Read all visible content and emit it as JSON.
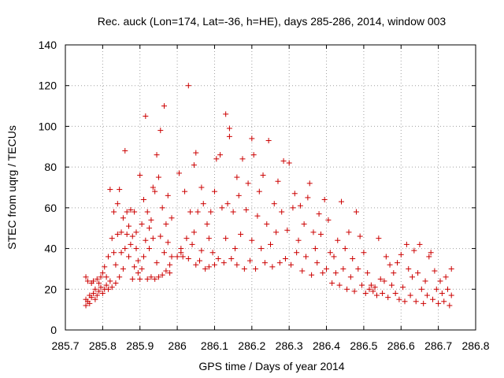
{
  "chart_data": {
    "type": "scatter",
    "title": "Rec. auck (Lon=174, Lat=-36, h=HE), days 285-286, 2014, window 003",
    "xlabel": "GPS time / Days of year 2014",
    "ylabel": "STEC from uqrg / TECUs",
    "xlim": [
      285.7,
      286.8
    ],
    "ylim": [
      0,
      140
    ],
    "xticks": [
      "285.7",
      "285.8",
      "285.9",
      "286",
      "286.1",
      "286.2",
      "286.3",
      "286.4",
      "286.5",
      "286.6",
      "286.7",
      "286.8"
    ],
    "yticks": [
      "0",
      "20",
      "40",
      "60",
      "80",
      "100",
      "120",
      "140"
    ],
    "grid": true,
    "legend": "none",
    "marker": "plus",
    "color": "#cc0000",
    "series": [
      {
        "points": [
          [
            285.755,
            12
          ],
          [
            285.755,
            15
          ],
          [
            285.755,
            26
          ],
          [
            285.76,
            14
          ],
          [
            285.76,
            24
          ],
          [
            285.765,
            13
          ],
          [
            285.765,
            17
          ],
          [
            285.77,
            16
          ],
          [
            285.77,
            23
          ],
          [
            285.775,
            18
          ],
          [
            285.775,
            24
          ],
          [
            285.78,
            15
          ],
          [
            285.78,
            20
          ],
          [
            285.785,
            17
          ],
          [
            285.785,
            25
          ],
          [
            285.79,
            19
          ],
          [
            285.79,
            23
          ],
          [
            285.795,
            21
          ],
          [
            285.795,
            26
          ],
          [
            285.8,
            18
          ],
          [
            285.8,
            28
          ],
          [
            285.805,
            20
          ],
          [
            285.805,
            31
          ],
          [
            285.81,
            22
          ],
          [
            285.81,
            26
          ],
          [
            285.815,
            20
          ],
          [
            285.815,
            36
          ],
          [
            285.82,
            24
          ],
          [
            285.82,
            69
          ],
          [
            285.825,
            21
          ],
          [
            285.825,
            45
          ],
          [
            285.83,
            38
          ],
          [
            285.83,
            58
          ],
          [
            285.835,
            23
          ],
          [
            285.835,
            32
          ],
          [
            285.84,
            47
          ],
          [
            285.84,
            62
          ],
          [
            285.845,
            26
          ],
          [
            285.845,
            69
          ],
          [
            285.85,
            38
          ],
          [
            285.85,
            48
          ],
          [
            285.855,
            30
          ],
          [
            285.855,
            55
          ],
          [
            285.86,
            40
          ],
          [
            285.86,
            88
          ],
          [
            285.865,
            47
          ],
          [
            285.865,
            58
          ],
          [
            285.87,
            36
          ],
          [
            285.87,
            51
          ],
          [
            285.875,
            42
          ],
          [
            285.875,
            59
          ],
          [
            285.88,
            25
          ],
          [
            285.88,
            46
          ],
          [
            285.885,
            31
          ],
          [
            285.885,
            58
          ],
          [
            285.89,
            40
          ],
          [
            285.89,
            48
          ],
          [
            285.895,
            28
          ],
          [
            285.895,
            34
          ],
          [
            285.9,
            25
          ],
          [
            285.9,
            76
          ],
          [
            285.905,
            30
          ],
          [
            285.905,
            52
          ],
          [
            285.91,
            36
          ],
          [
            285.91,
            64
          ],
          [
            285.915,
            105
          ],
          [
            285.915,
            44
          ],
          [
            285.92,
            25
          ],
          [
            285.92,
            58
          ],
          [
            285.925,
            40
          ],
          [
            285.925,
            50
          ],
          [
            285.93,
            26
          ],
          [
            285.93,
            54
          ],
          [
            285.935,
            45
          ],
          [
            285.935,
            70
          ],
          [
            285.94,
            25
          ],
          [
            285.94,
            68
          ],
          [
            285.945,
            33
          ],
          [
            285.945,
            86
          ],
          [
            285.95,
            26
          ],
          [
            285.95,
            75
          ],
          [
            285.955,
            46
          ],
          [
            285.955,
            98
          ],
          [
            285.96,
            27
          ],
          [
            285.96,
            60
          ],
          [
            285.965,
            110
          ],
          [
            285.965,
            38
          ],
          [
            285.97,
            29
          ],
          [
            285.97,
            52
          ],
          [
            285.975,
            43
          ],
          [
            285.975,
            66
          ],
          [
            285.98,
            32
          ],
          [
            285.98,
            28
          ],
          [
            285.985,
            55
          ],
          [
            285.985,
            36
          ],
          [
            286.0,
            36
          ],
          [
            286.005,
            77
          ],
          [
            286.01,
            40
          ],
          [
            286.01,
            38
          ],
          [
            286.015,
            36
          ],
          [
            286.02,
            68
          ],
          [
            286.025,
            45
          ],
          [
            286.03,
            120
          ],
          [
            286.03,
            35
          ],
          [
            286.035,
            58
          ],
          [
            286.04,
            42
          ],
          [
            286.045,
            48
          ],
          [
            286.045,
            81
          ],
          [
            286.05,
            87
          ],
          [
            286.05,
            32
          ],
          [
            286.055,
            58
          ],
          [
            286.06,
            34
          ],
          [
            286.065,
            70
          ],
          [
            286.065,
            39
          ],
          [
            286.07,
            62
          ],
          [
            286.075,
            30
          ],
          [
            286.08,
            52
          ],
          [
            286.085,
            45
          ],
          [
            286.085,
            31
          ],
          [
            286.09,
            58
          ],
          [
            286.095,
            38
          ],
          [
            286.1,
            68
          ],
          [
            286.1,
            32
          ],
          [
            286.105,
            84
          ],
          [
            286.11,
            35
          ],
          [
            286.115,
            86
          ],
          [
            286.12,
            60
          ],
          [
            286.125,
            33
          ],
          [
            286.13,
            106
          ],
          [
            286.13,
            45
          ],
          [
            286.135,
            62
          ],
          [
            286.14,
            99
          ],
          [
            286.14,
            95
          ],
          [
            286.145,
            35
          ],
          [
            286.15,
            58
          ],
          [
            286.155,
            40
          ],
          [
            286.16,
            75
          ],
          [
            286.16,
            32
          ],
          [
            286.165,
            66
          ],
          [
            286.17,
            47
          ],
          [
            286.175,
            84
          ],
          [
            286.18,
            30
          ],
          [
            286.185,
            59
          ],
          [
            286.19,
            72
          ],
          [
            286.195,
            34
          ],
          [
            286.2,
            44
          ],
          [
            286.2,
            94
          ],
          [
            286.205,
            86
          ],
          [
            286.21,
            30
          ],
          [
            286.215,
            56
          ],
          [
            286.22,
            68
          ],
          [
            286.225,
            40
          ],
          [
            286.23,
            76
          ],
          [
            286.235,
            33
          ],
          [
            286.24,
            52
          ],
          [
            286.245,
            93
          ],
          [
            286.25,
            42
          ],
          [
            286.255,
            31
          ],
          [
            286.26,
            62
          ],
          [
            286.265,
            48
          ],
          [
            286.27,
            73
          ],
          [
            286.275,
            33
          ],
          [
            286.28,
            58
          ],
          [
            286.285,
            83
          ],
          [
            286.29,
            35
          ],
          [
            286.295,
            49
          ],
          [
            286.3,
            82
          ],
          [
            286.305,
            32
          ],
          [
            286.31,
            60
          ],
          [
            286.315,
            67
          ],
          [
            286.32,
            38
          ],
          [
            286.325,
            44
          ],
          [
            286.33,
            61
          ],
          [
            286.335,
            29
          ],
          [
            286.34,
            52
          ],
          [
            286.345,
            36
          ],
          [
            286.35,
            65
          ],
          [
            286.355,
            72
          ],
          [
            286.36,
            27
          ],
          [
            286.365,
            48
          ],
          [
            286.37,
            40
          ],
          [
            286.375,
            33
          ],
          [
            286.38,
            57
          ],
          [
            286.385,
            47
          ],
          [
            286.39,
            28
          ],
          [
            286.395,
            64
          ],
          [
            286.4,
            30
          ],
          [
            286.405,
            54
          ],
          [
            286.41,
            38
          ],
          [
            286.415,
            23
          ],
          [
            286.42,
            36
          ],
          [
            286.425,
            28
          ],
          [
            286.43,
            44
          ],
          [
            286.435,
            22
          ],
          [
            286.44,
            63
          ],
          [
            286.445,
            30
          ],
          [
            286.45,
            40
          ],
          [
            286.455,
            20
          ],
          [
            286.46,
            48
          ],
          [
            286.465,
            26
          ],
          [
            286.47,
            35
          ],
          [
            286.475,
            19
          ],
          [
            286.48,
            58
          ],
          [
            286.485,
            30
          ],
          [
            286.49,
            46
          ],
          [
            286.495,
            22
          ],
          [
            286.5,
            38
          ],
          [
            286.505,
            18
          ],
          [
            286.51,
            28
          ],
          [
            286.515,
            20
          ],
          [
            286.52,
            22
          ],
          [
            286.525,
            19
          ],
          [
            286.53,
            21
          ],
          [
            286.535,
            17
          ],
          [
            286.54,
            45
          ],
          [
            286.545,
            25
          ],
          [
            286.55,
            18
          ],
          [
            286.555,
            24
          ],
          [
            286.56,
            36
          ],
          [
            286.565,
            16
          ],
          [
            286.57,
            32
          ],
          [
            286.575,
            22
          ],
          [
            286.58,
            28
          ],
          [
            286.585,
            18
          ],
          [
            286.59,
            33
          ],
          [
            286.595,
            15
          ],
          [
            286.6,
            37
          ],
          [
            286.605,
            21
          ],
          [
            286.61,
            14
          ],
          [
            286.615,
            42
          ],
          [
            286.62,
            30
          ],
          [
            286.625,
            17
          ],
          [
            286.63,
            26
          ],
          [
            286.635,
            39
          ],
          [
            286.64,
            14
          ],
          [
            286.645,
            28
          ],
          [
            286.65,
            42
          ],
          [
            286.655,
            20
          ],
          [
            286.66,
            13
          ],
          [
            286.665,
            24
          ],
          [
            286.67,
            17
          ],
          [
            286.675,
            36
          ],
          [
            286.68,
            38
          ],
          [
            286.685,
            15
          ],
          [
            286.69,
            29
          ],
          [
            286.695,
            20
          ],
          [
            286.7,
            13
          ],
          [
            286.705,
            24
          ],
          [
            286.71,
            18
          ],
          [
            286.715,
            14
          ],
          [
            286.72,
            26
          ],
          [
            286.725,
            20
          ],
          [
            286.73,
            12
          ],
          [
            286.735,
            30
          ],
          [
            286.735,
            17
          ]
        ]
      }
    ]
  }
}
